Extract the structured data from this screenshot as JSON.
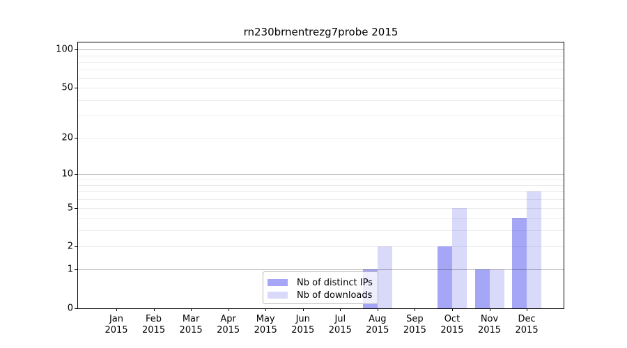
{
  "figure": {
    "title": "rn230brnentrezg7probe 2015"
  },
  "chart_data": {
    "type": "bar",
    "title": "rn230brnentrezg7probe 2015",
    "categories": [
      "Jan",
      "Feb",
      "Mar",
      "Apr",
      "May",
      "Jun",
      "Jul",
      "Aug",
      "Sep",
      "Oct",
      "Nov",
      "Dec"
    ],
    "category_year": "2015",
    "series": [
      {
        "name": "Nb of distinct IPs",
        "color": "#a6a6f7",
        "values": [
          0,
          0,
          0,
          0,
          0,
          0,
          0,
          1,
          0,
          2,
          1,
          4
        ]
      },
      {
        "name": "Nb of downloads",
        "color": "#d9d9fa",
        "values": [
          0,
          0,
          0,
          0,
          0,
          0,
          0,
          2,
          0,
          5,
          1,
          7
        ]
      }
    ],
    "yscale": "log1p",
    "yticks": [
      0,
      1,
      2,
      5,
      10,
      20,
      50,
      100
    ],
    "ylim": [
      0,
      113
    ],
    "grid": "horizontal, log minors at 2-9, 20-90, majors at 1/10/100",
    "legend_position": "lower center"
  },
  "colors": {
    "background": "#ffffff",
    "spine": "#000000",
    "grid_major": "#bababa",
    "grid_minor": "#ebebeb",
    "bar_distinct_ips": "#a6a6f7",
    "bar_downloads": "#d9d9fa"
  }
}
